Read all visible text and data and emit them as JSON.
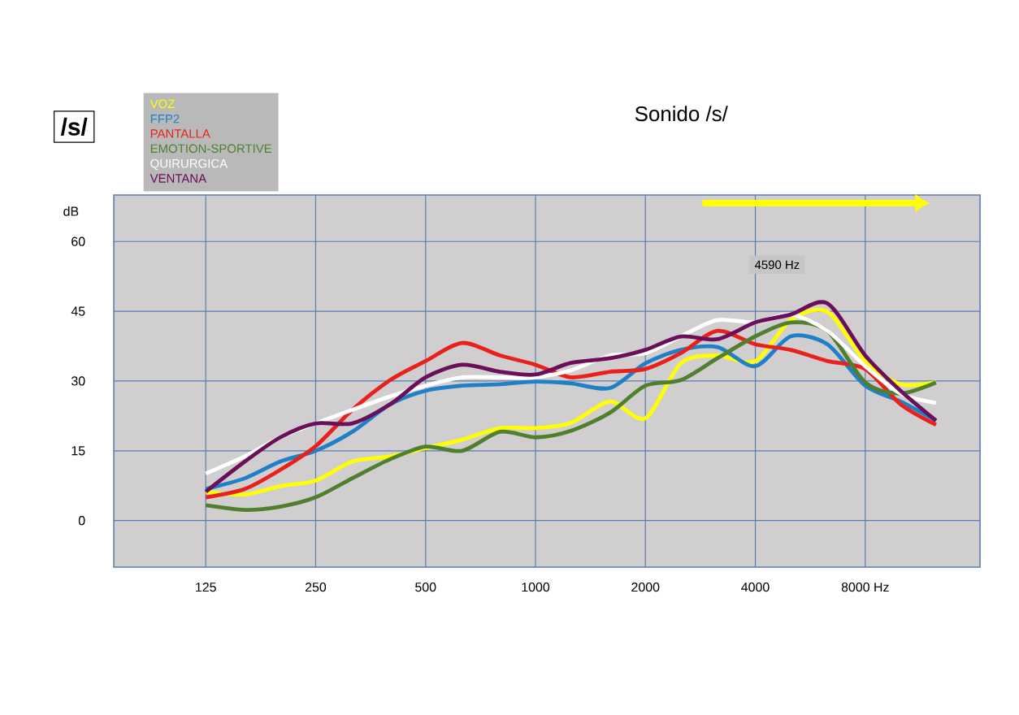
{
  "chart_data": {
    "type": "line",
    "title": "Sonido /s/",
    "ylabel": "dB",
    "annotations": [
      "/s/",
      {
        "text": "4590 Hz",
        "x": 4590,
        "y": 55
      }
    ],
    "x": [
      125,
      160,
      200,
      250,
      315,
      400,
      500,
      630,
      800,
      1000,
      1250,
      1600,
      2000,
      2500,
      3150,
      4000,
      5000,
      6300,
      8000,
      10000,
      12500
    ],
    "series": [
      {
        "name": "VOZ",
        "color": "#ffff00",
        "values": [
          6.2,
          5.6,
          7.4,
          8.6,
          12.7,
          13.8,
          15.6,
          17.4,
          19.9,
          19.9,
          21,
          25.6,
          22,
          33.8,
          35.5,
          34.3,
          43.1,
          44.9,
          34.3,
          29.3,
          29.7
        ]
      },
      {
        "name": "FFP2",
        "color": "#1f80c8",
        "values": [
          6.8,
          9.1,
          12.7,
          15,
          19.1,
          25,
          27.9,
          29,
          29.3,
          29.9,
          29.5,
          28.5,
          33.8,
          36.7,
          37.3,
          33.2,
          39.6,
          37.9,
          29,
          25.6,
          21.5
        ]
      },
      {
        "name": "PANTALLA",
        "color": "#e8211c",
        "values": [
          5,
          6.8,
          10.9,
          16,
          23.8,
          30.2,
          34.3,
          38.2,
          35.5,
          33.5,
          30.8,
          32,
          32.6,
          36,
          40.8,
          37.9,
          36.7,
          34.3,
          32.6,
          25,
          20.6
        ]
      },
      {
        "name": "EMOTION-SPORTIVE",
        "color": "#4f7f2f",
        "values": [
          3.3,
          2.3,
          3,
          5,
          9.1,
          13.2,
          15.9,
          15,
          19.1,
          17.9,
          19.3,
          23.2,
          29,
          30.2,
          34.9,
          39.6,
          42.6,
          40.8,
          29.7,
          27.3,
          29.7
        ]
      },
      {
        "name": "QUIRURGICA",
        "color": "#ffffff",
        "values": [
          10.1,
          13.8,
          17.9,
          20.9,
          23.8,
          26.7,
          29,
          30.8,
          30.8,
          30.8,
          32.3,
          35.5,
          36,
          39.6,
          43.1,
          42.6,
          44.3,
          40.8,
          33.2,
          27.3,
          25.3
        ]
      },
      {
        "name": "VENTANA",
        "color": "#6b0f5a",
        "values": [
          6.2,
          12.7,
          17.9,
          20.9,
          20.9,
          25,
          30.8,
          33.5,
          32,
          31.4,
          33.9,
          34.9,
          36.7,
          39.6,
          39,
          42.6,
          44.3,
          46.7,
          35.5,
          27.9,
          21.5
        ]
      }
    ],
    "xlim": [
      70,
      16500
    ],
    "ylim": [
      -10,
      70
    ],
    "xticks": [
      125,
      250,
      500,
      1000,
      2000,
      4000,
      {
        "value": 8000,
        "label": "8000 Hz"
      }
    ],
    "yticks": [
      0,
      15,
      30,
      45,
      60
    ],
    "log": "x",
    "grid": true,
    "legend": "top left",
    "marker": "none",
    "line_style": "solid"
  }
}
